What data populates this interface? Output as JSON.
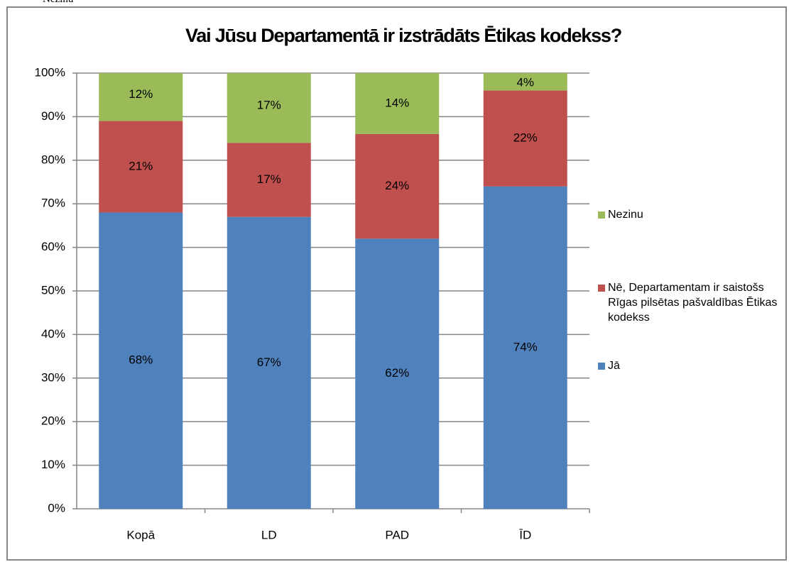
{
  "page_fragment": "Nezinu",
  "chart_data": {
    "type": "stacked_bar",
    "title": "Vai Jūsu Departamentā ir izstrādāts Ētikas kodekss?",
    "categories": [
      "Kopā",
      "LD",
      "PAD",
      "ĪD"
    ],
    "series": [
      {
        "name": "Jā",
        "color": "#4f81bd",
        "values": [
          68,
          67,
          62,
          74
        ],
        "value_labels": [
          "68%",
          "67%",
          "62%",
          "74%"
        ]
      },
      {
        "name": "Nē, Departamentam ir saistošs Rīgas pilsētas pašvaldības Ētikas kodekss",
        "color": "#c0504d",
        "values": [
          21,
          17,
          24,
          22
        ],
        "value_labels": [
          "21%",
          "17%",
          "24%",
          "22%"
        ]
      },
      {
        "name": "Nezinu",
        "color": "#9bbb59",
        "values": [
          12,
          17,
          14,
          4
        ],
        "value_labels": [
          "12%",
          "17%",
          "14%",
          "4%"
        ]
      }
    ],
    "ylim": [
      0,
      100
    ],
    "yticks": [
      {
        "value": 0,
        "label": "0%"
      },
      {
        "value": 10,
        "label": "10%"
      },
      {
        "value": 20,
        "label": "20%"
      },
      {
        "value": 30,
        "label": "30%"
      },
      {
        "value": 40,
        "label": "40%"
      },
      {
        "value": 50,
        "label": "50%"
      },
      {
        "value": 60,
        "label": "60%"
      },
      {
        "value": 70,
        "label": "70%"
      },
      {
        "value": 80,
        "label": "80%"
      },
      {
        "value": 90,
        "label": "90%"
      },
      {
        "value": 100,
        "label": "100%"
      }
    ],
    "grid": true,
    "legend": "right"
  }
}
